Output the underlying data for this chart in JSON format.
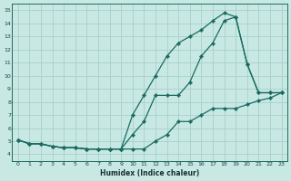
{
  "xlabel": "Humidex (Indice chaleur)",
  "ylabel": "",
  "bg_color": "#c8e8e4",
  "grid_color": "#a8d0cc",
  "line_color": "#1a6b60",
  "marker": "D",
  "marker_size": 2.2,
  "xlim": [
    -0.5,
    23.5
  ],
  "ylim": [
    3.5,
    15.5
  ],
  "xticks": [
    0,
    1,
    2,
    3,
    4,
    5,
    6,
    7,
    8,
    9,
    10,
    11,
    12,
    13,
    14,
    15,
    16,
    17,
    18,
    19,
    20,
    21,
    22,
    23
  ],
  "yticks": [
    4,
    5,
    6,
    7,
    8,
    9,
    10,
    11,
    12,
    13,
    14,
    15
  ],
  "x": [
    0,
    1,
    2,
    3,
    4,
    5,
    6,
    7,
    8,
    9,
    10,
    11,
    12,
    13,
    14,
    15,
    16,
    17,
    18,
    19,
    20,
    21,
    22,
    23
  ],
  "y_top": [
    5.1,
    4.8,
    4.8,
    4.6,
    4.5,
    4.5,
    4.4,
    4.4,
    4.4,
    4.4,
    7.0,
    8.5,
    10.0,
    11.5,
    12.5,
    13.0,
    13.5,
    14.2,
    14.8,
    14.5,
    10.9,
    8.7,
    8.7,
    8.7
  ],
  "y_mid": [
    5.1,
    4.8,
    4.8,
    4.6,
    4.5,
    4.5,
    4.4,
    4.4,
    4.4,
    4.4,
    5.5,
    6.5,
    8.5,
    8.5,
    8.5,
    9.5,
    11.5,
    12.5,
    14.2,
    14.5,
    10.9,
    8.7,
    8.7,
    8.7
  ],
  "y_bot": [
    5.1,
    4.8,
    4.8,
    4.6,
    4.5,
    4.5,
    4.4,
    4.4,
    4.4,
    4.4,
    4.4,
    4.4,
    5.0,
    5.5,
    6.5,
    6.5,
    7.0,
    7.5,
    7.5,
    7.5,
    7.8,
    8.1,
    8.3,
    8.7
  ]
}
